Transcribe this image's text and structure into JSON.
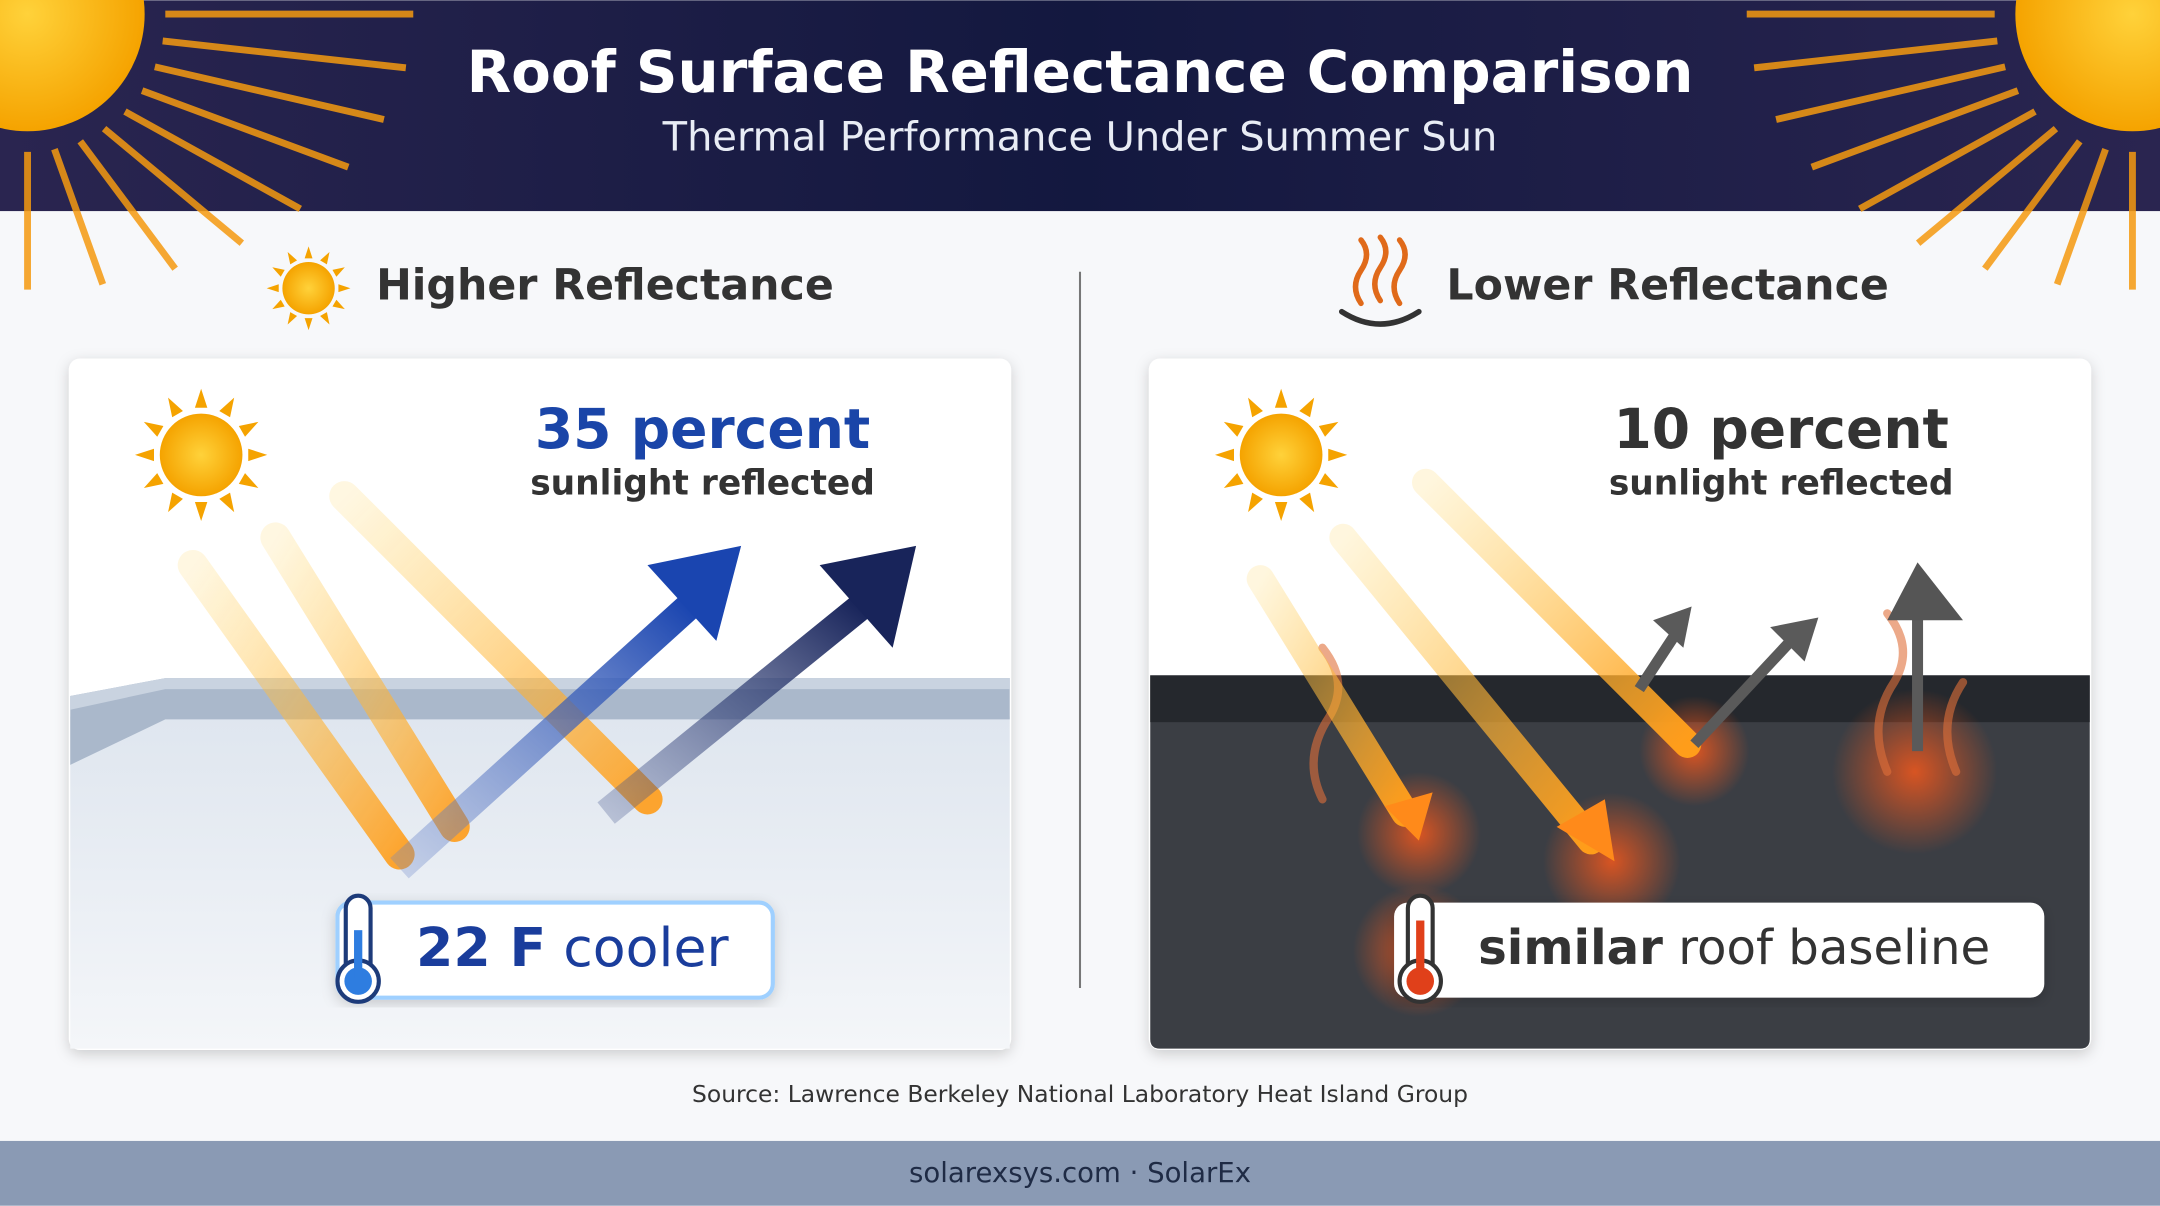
{
  "header": {
    "title": "Roof Surface Reflectance Comparison",
    "subtitle": "Thermal Performance Under Summer Sun"
  },
  "panels": [
    {
      "heading": "Higher Reflectance",
      "stat": "35 percent",
      "stat_caption": "sunlight reflected",
      "badge_strong": "22 F",
      "badge_rest": "cooler"
    },
    {
      "heading": "Lower Reflectance",
      "stat": "10 percent",
      "stat_caption": "sunlight reflected",
      "badge_strong": "similar",
      "badge_rest": "roof baseline"
    }
  ],
  "source": "Source: Lawrence Berkeley National Laboratory Heat Island Group",
  "footer": "solarexsys.com · SolarEx"
}
